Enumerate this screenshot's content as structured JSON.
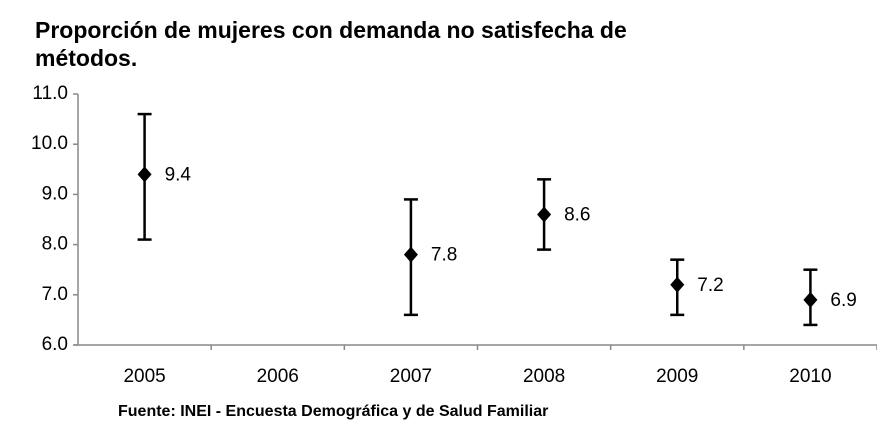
{
  "chart_data": {
    "type": "errorbar",
    "title": "Proporción de mujeres con demanda no satisfecha de métodos.",
    "source": "Fuente: INEI - Encuesta Demográfica y de Salud Familiar",
    "categories": [
      "2005",
      "2006",
      "2007",
      "2008",
      "2009",
      "2010"
    ],
    "values": [
      9.4,
      null,
      7.8,
      8.6,
      7.2,
      6.9
    ],
    "lower": [
      8.1,
      null,
      6.6,
      7.9,
      6.6,
      6.4
    ],
    "upper": [
      10.6,
      null,
      8.9,
      9.3,
      7.7,
      7.5
    ],
    "color": "#000000",
    "ylim": [
      6,
      11
    ],
    "yticks": [
      {
        "value": 6,
        "label": "6.0"
      },
      {
        "value": 7,
        "label": "7.0"
      },
      {
        "value": 8,
        "label": "8.0"
      },
      {
        "value": 9,
        "label": "9.0"
      },
      {
        "value": 10,
        "label": "10.0"
      },
      {
        "value": 11,
        "label": "11.0"
      }
    ]
  }
}
